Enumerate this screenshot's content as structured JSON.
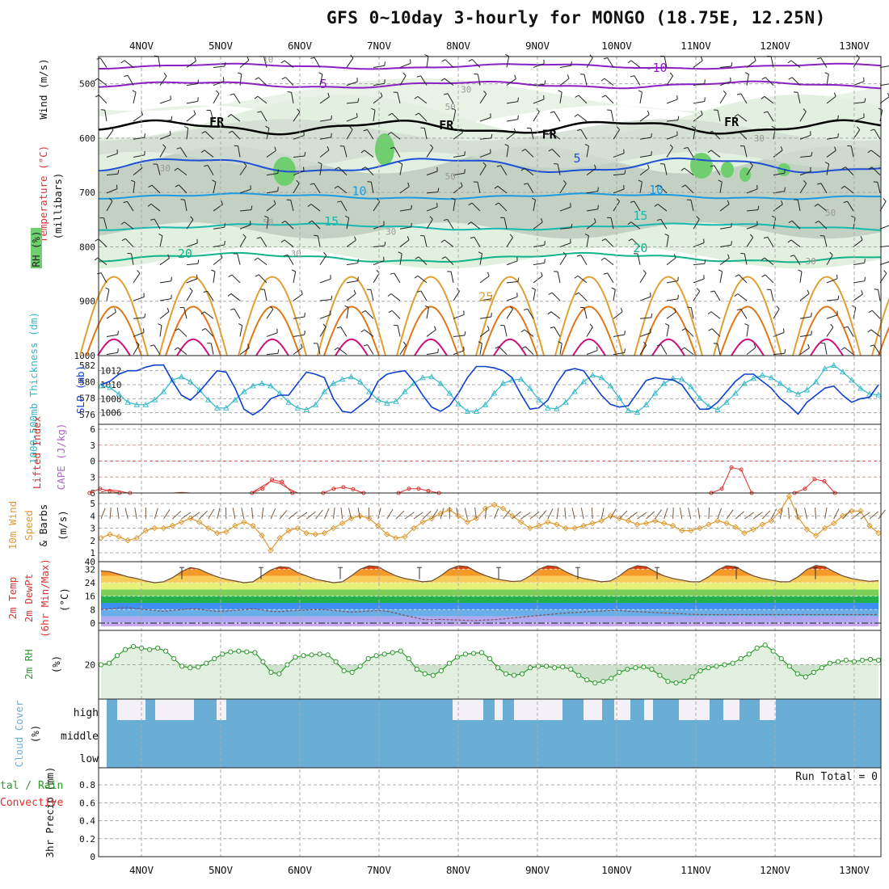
{
  "title": "GFS 0~10day 3-hourly for MONGO (18.75E, 12.25N)",
  "dates": [
    "4NOV",
    "5NOV",
    "6NOV",
    "7NOV",
    "8NOV",
    "9NOV",
    "10NOV",
    "11NOV",
    "12NOV",
    "13NOV"
  ],
  "colors": {
    "grid": "#aaaaaa",
    "rh_light": "#e2f0e0",
    "rh_mid": "#bccbbb",
    "rh_high": "#6fcf6f",
    "temp_purple": "#8a1fc2",
    "temp_black": "#000000",
    "temp_blue": "#1f4fd6",
    "temp_cyan": "#1e9be0",
    "temp_teal": "#16b8b0",
    "temp_green": "#11b38a",
    "temp_orange": "#e0a030",
    "temp_darkorange": "#e07818",
    "temp_magenta": "#d0107a",
    "slp": "#1040d0",
    "thickness": "#30b8c8",
    "lifted": "#e03030",
    "wind10m": "#e09a30",
    "rh2m": "#2e9a2e",
    "cloud": "#6aaed6",
    "cloud_bg": "#f4f0f8"
  },
  "chart_data": [
    {
      "type": "cross-section",
      "panel": "upper-air",
      "ylabel_wind": "Wind (m/s)",
      "ylabel_temp": "Temperature (°C)",
      "ylabel_rh": "RH (%)",
      "ylabel_pressure": "(millibars)",
      "y_ticks": [
        500,
        600,
        700,
        800,
        900,
        1000
      ],
      "ylim": [
        450,
        1000
      ],
      "isotherm_labels": [
        {
          "text": "-10",
          "day": 6.5,
          "p": 478
        },
        {
          "text": "5",
          "day": 2.3,
          "p": 508
        },
        {
          "text": "FR",
          "day": 0.95,
          "p": 578
        },
        {
          "text": "FR",
          "day": 3.85,
          "p": 584
        },
        {
          "text": "FR",
          "day": 5.15,
          "p": 601
        },
        {
          "text": "FR",
          "day": 7.45,
          "p": 578
        },
        {
          "text": "5",
          "day": 5.5,
          "p": 645
        },
        {
          "text": "10",
          "day": 2.75,
          "p": 705
        },
        {
          "text": "10",
          "day": 6.5,
          "p": 703
        },
        {
          "text": "15",
          "day": 2.4,
          "p": 761
        },
        {
          "text": "15",
          "day": 6.3,
          "p": 750
        },
        {
          "text": "20",
          "day": 0.55,
          "p": 820
        },
        {
          "text": "20",
          "day": 6.3,
          "p": 810
        },
        {
          "text": "25",
          "day": 4.35,
          "p": 900
        }
      ],
      "rh_labels": [
        {
          "text": "10",
          "day": 1.6,
          "p": 461
        },
        {
          "text": "30",
          "day": 4.1,
          "p": 516
        },
        {
          "text": "50",
          "day": 3.9,
          "p": 548
        },
        {
          "text": "30",
          "day": 0.3,
          "p": 661
        },
        {
          "text": "50",
          "day": 1.6,
          "p": 761
        },
        {
          "text": "30",
          "day": 3.15,
          "p": 778
        },
        {
          "text": "50",
          "day": 3.9,
          "p": 676
        },
        {
          "text": "30",
          "day": 7.8,
          "p": 606
        },
        {
          "text": "50",
          "day": 8.7,
          "p": 743
        },
        {
          "text": "30",
          "day": 1.95,
          "p": 818
        },
        {
          "text": "30",
          "day": 8.45,
          "p": 832
        }
      ]
    },
    {
      "type": "line",
      "panel": "slp-thickness",
      "ylabel_left": "1000-500mb Thickness (dm)",
      "ylabel_right": "SLP (mb)",
      "thickness_ticks": [
        576,
        578,
        580,
        582
      ],
      "slp_ticks": [
        1006,
        1008,
        1010,
        1012
      ],
      "series": [
        {
          "name": "SLP",
          "axis": "slp",
          "values": [
            1010,
            1010.5,
            1011.5,
            1012,
            1012,
            1012.5,
            1012.8,
            1012.8,
            1010.5,
            1008.5,
            1007.8,
            1009,
            1010.5,
            1012,
            1011.8,
            1009.5,
            1006.5,
            1005.7,
            1006.5,
            1008,
            1008.5,
            1008.5,
            1010.2,
            1011.8,
            1011.5,
            1011,
            1008,
            1006.2,
            1006,
            1007,
            1008,
            1010.5,
            1011.5,
            1011.8,
            1012,
            1010.5,
            1008.5,
            1006.8,
            1006.2,
            1007,
            1008.8,
            1011,
            1012.6,
            1012.6,
            1012.4,
            1012,
            1011,
            1008.6,
            1006.5,
            1006.7,
            1007.8,
            1010.2,
            1012,
            1012.3,
            1012,
            1010.2,
            1008.5,
            1007.2,
            1006.8,
            1007,
            1008.8,
            1010.6,
            1011,
            1010.8,
            1010.7,
            1010,
            1008.2,
            1006.5,
            1006.5,
            1007.5,
            1009,
            1010.5,
            1011.5,
            1011.5,
            1010.5,
            1009.5,
            1008,
            1007,
            1005.8,
            1007.5,
            1008.5,
            1009.5,
            1009.8,
            1008.5,
            1007.5,
            1008,
            1008.2,
            1010
          ]
        },
        {
          "name": "Thickness",
          "axis": "thickness",
          "values": [
            579.5,
            579.3,
            578.5,
            577.5,
            577.2,
            577.2,
            577.8,
            578.8,
            580.2,
            580.6,
            580,
            579,
            577.8,
            576.8,
            576.8,
            577.8,
            578.8,
            579.5,
            579.8,
            579.5,
            578.6,
            577.5,
            576.8,
            576.6,
            577.2,
            578.8,
            579.8,
            580.3,
            580.6,
            580,
            578.8,
            577.8,
            577.4,
            577.6,
            578.8,
            579.8,
            580.5,
            580.6,
            579.8,
            578.6,
            577.3,
            576.4,
            576.4,
            577.2,
            578.6,
            579.8,
            580.2,
            580.3,
            579.2,
            577.8,
            576.8,
            576.7,
            577.5,
            578.8,
            580,
            580.8,
            580.5,
            579.5,
            578,
            576.5,
            576.3,
            577.2,
            578.6,
            579.8,
            580.4,
            580.3,
            579.4,
            578,
            577,
            576.6,
            577.5,
            578.6,
            579.8,
            580.4,
            580.8,
            580.5,
            579.8,
            579,
            578.5,
            579,
            580,
            581.6,
            582,
            581.2,
            580.2,
            579.2,
            578.5,
            578.4
          ]
        }
      ]
    },
    {
      "type": "line",
      "panel": "cape-lifted",
      "ylabel_left": "Lifted Index",
      "ylabel_right": "CAPE (J/kg)",
      "yticks": [
        -6,
        -3,
        0,
        3,
        6
      ],
      "series": [
        {
          "name": "Lifted Index",
          "values": [
            5.8,
            5.4,
            5.6,
            6,
            6,
            6,
            6,
            6,
            6,
            5.9,
            6,
            6,
            6,
            6,
            6,
            6,
            6,
            5.8,
            4.8,
            3.8,
            4.2,
            5.2,
            6,
            6,
            6,
            6,
            6,
            6,
            6,
            6,
            6,
            6,
            6,
            6,
            6,
            6,
            6,
            6,
            6,
            6,
            6,
            6,
            6,
            6,
            6,
            6,
            6,
            6,
            6,
            6,
            6,
            6,
            6,
            6,
            6,
            6,
            6,
            6,
            6,
            6,
            6,
            6,
            6,
            6,
            6,
            6,
            6,
            6,
            6,
            6,
            6,
            6,
            6,
            6,
            6,
            6,
            6,
            6,
            6,
            6,
            6,
            6,
            6,
            6,
            6,
            6,
            6,
            6
          ]
        }
      ]
    },
    {
      "type": "line",
      "panel": "wind10m",
      "ylabel": "10m Wind Speed & Barbs (m/s)",
      "yticks": [
        1,
        2,
        3,
        4,
        5
      ],
      "series": [
        {
          "name": "10m Wind Speed",
          "values": [
            2.2,
            2.5,
            2.3,
            2,
            2.2,
            2.8,
            3,
            3,
            3.2,
            3.5,
            3.8,
            3.5,
            3,
            2.6,
            2.7,
            3.2,
            3.5,
            3.2,
            2.4,
            1.2,
            2.2,
            2.8,
            3,
            2.6,
            2.5,
            2.6,
            3,
            3.4,
            3.8,
            4,
            3.8,
            3.2,
            2.5,
            2.2,
            2.3,
            3,
            3.5,
            3.8,
            4.2,
            4.5,
            4,
            3.5,
            3.8,
            4.6,
            4.9,
            4.6,
            4,
            3.5,
            3,
            3.2,
            3.5,
            3.3,
            3,
            3,
            3.2,
            3.4,
            3.6,
            4,
            3.8,
            3.6,
            3.3,
            3.4,
            3.6,
            3.4,
            3.2,
            2.8,
            2.8,
            3,
            3.3,
            3.6,
            3.4,
            3.1,
            2.6,
            2.9,
            3.3,
            3.6,
            4.4,
            5.6,
            3.9,
            2.9,
            2.4,
            3,
            3.4,
            4,
            4.4,
            4.4,
            3.2,
            2.6
          ]
        }
      ]
    },
    {
      "type": "area",
      "panel": "temp2m",
      "ylabel": "2m Temp 2m DewPt (6hr Min/Max) (°C)",
      "yticks": [
        0,
        8,
        16,
        24,
        32
      ],
      "series": [
        {
          "name": "2m Temp",
          "values": [
            31,
            30.5,
            29,
            27.5,
            26.5,
            25,
            24,
            24.5,
            27,
            30.5,
            33,
            32,
            29.5,
            27.5,
            26,
            25,
            24,
            24.5,
            28,
            31.5,
            33.5,
            33,
            30,
            28,
            26,
            25,
            24,
            24.5,
            28,
            32,
            34,
            33.5,
            30.5,
            28,
            26.5,
            25.5,
            24.5,
            25,
            28,
            32,
            34,
            33.5,
            30.5,
            28.2,
            26.5,
            25.5,
            24.7,
            25,
            28,
            32,
            34,
            33.5,
            30.5,
            28,
            26.5,
            25.5,
            24.5,
            25,
            28,
            32,
            34,
            33.5,
            30.5,
            28,
            26.5,
            25.5,
            24.5,
            24.5,
            27.5,
            31.5,
            34,
            33.5,
            30.5,
            28,
            26.5,
            25.5,
            24.5,
            24.5,
            27.5,
            31.8,
            34.2,
            33.5,
            30.5,
            28,
            26.5,
            25.5,
            24.8,
            25.2
          ]
        },
        {
          "name": "2m DewPt",
          "values": [
            8,
            8.5,
            9,
            9.2,
            8.5,
            8,
            7.5,
            7,
            7.5,
            8,
            8.5,
            8.2,
            7.5,
            7,
            7.2,
            7.5,
            8,
            8.5,
            7.8,
            7,
            6.8,
            7.2,
            7.5,
            7.8,
            8,
            8,
            7.5,
            7,
            6.5,
            6.8,
            7.2,
            7.5,
            7,
            6,
            4.5,
            3.5,
            2.2,
            2,
            2.2,
            2,
            1.8,
            1.5,
            1.5,
            1.8,
            2,
            2.5,
            3,
            3.5,
            4,
            4.5,
            5,
            5.5,
            6,
            6.2,
            6.5,
            7,
            7.2,
            7.5,
            7.5,
            7,
            6.8,
            6.5,
            6.2,
            6,
            5.8,
            5.5,
            5.2,
            5,
            5,
            5,
            5,
            5,
            5,
            5,
            5,
            5,
            5,
            5,
            5,
            5,
            5,
            5,
            5,
            5,
            5,
            5,
            5,
            5
          ]
        }
      ]
    },
    {
      "type": "line",
      "panel": "rh2m",
      "ylabel": "2m RH (%)",
      "yticks": [
        20
      ],
      "series": [
        {
          "name": "2m RH",
          "values": [
            20,
            21,
            26,
            30,
            32,
            31,
            30,
            31,
            29,
            24,
            19,
            18,
            18.5,
            21,
            24,
            27,
            28.5,
            29,
            28.5,
            28,
            22,
            15,
            14,
            20,
            25,
            26,
            26.5,
            27,
            26.5,
            22,
            16,
            15,
            19,
            24,
            26,
            27,
            28,
            29,
            24,
            17,
            14,
            13,
            16,
            21,
            25,
            27,
            27.5,
            28,
            24,
            18,
            14,
            13,
            14,
            18,
            19,
            19,
            18,
            18.5,
            17,
            13,
            10,
            8,
            9,
            11,
            15,
            17,
            18,
            18.5,
            17,
            13,
            9,
            8,
            9,
            12,
            16,
            18,
            19,
            20,
            21,
            24,
            27,
            31,
            33,
            29,
            24,
            19,
            14,
            12,
            15,
            18,
            21,
            22,
            23,
            22,
            23,
            23.5,
            23
          ]
        }
      ]
    },
    {
      "type": "bar",
      "panel": "cloud",
      "ylabel": "Cloud Cover (%)",
      "levels": [
        "high",
        "middle",
        "low"
      ],
      "series": [
        {
          "name": "high",
          "values": [
            100,
            45,
            0,
            0,
            0,
            0,
            0,
            0,
            0,
            0,
            0,
            0,
            0,
            0,
            0,
            0,
            0,
            0,
            0,
            0,
            0,
            0,
            0,
            0,
            0,
            0,
            0,
            0,
            0,
            0,
            0,
            0,
            0,
            0,
            0,
            0,
            0,
            0,
            0,
            0,
            0,
            0,
            0,
            0,
            100,
            100,
            100,
            100,
            100,
            100,
            100,
            100,
            100,
            100,
            100,
            100,
            100,
            100,
            100,
            100,
            100,
            100,
            100,
            100,
            100,
            100,
            100,
            100,
            100,
            100,
            100,
            100,
            100,
            100,
            100,
            100,
            100,
            100,
            100,
            100,
            100,
            100,
            100,
            100,
            100,
            100,
            100,
            100,
            100,
            100,
            100,
            100,
            100,
            100,
            100,
            100,
            100,
            100,
            100,
            100,
            100,
            100
          ]
        }
      ]
    },
    {
      "type": "bar",
      "panel": "precip",
      "ylabel": "3hr Precip (mm)",
      "ylabel_left": "Total / Rain",
      "ylabel_left2": "Convective",
      "yticks": [
        0,
        0.2,
        0.4,
        0.6,
        0.8
      ],
      "run_total": "Run Total = 0",
      "values": []
    }
  ],
  "axis_labels": {
    "wind": "Wind (m/s)",
    "temperature": "Temperature (°C)",
    "rh": "RH (%)",
    "millibars": "(millibars)",
    "slp": "SLP (mb)",
    "thickness": "1000-500mb Thickness (dm)",
    "cape": "CAPE (J/kg)",
    "lifted": "Lifted Index",
    "wind10m_a": "10m Wind",
    "wind10m_b": "Speed",
    "wind10m_c": "& Barbs",
    "ms": "(m/s)",
    "temp2m_a": "2m Temp",
    "temp2m_b": "2m DewPt",
    "temp2m_c": "(6hr Min/Max)",
    "degc": "(°C)",
    "rh2m": "2m RH",
    "pct": "(%)",
    "cloud": "Cloud Cover",
    "precip": "3hr Precip (mm)",
    "total_rain": "tal / Rain",
    "convective": "Convective",
    "high": "high",
    "middle": "middle",
    "low": "low"
  }
}
